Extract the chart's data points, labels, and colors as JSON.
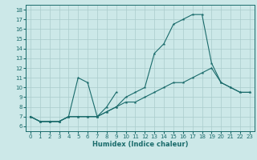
{
  "xlabel": "Humidex (Indice chaleur)",
  "xlim": [
    -0.5,
    23.5
  ],
  "ylim": [
    5.5,
    18.5
  ],
  "xticks": [
    0,
    1,
    2,
    3,
    4,
    5,
    6,
    7,
    8,
    9,
    10,
    11,
    12,
    13,
    14,
    15,
    16,
    17,
    18,
    19,
    20,
    21,
    22,
    23
  ],
  "yticks": [
    6,
    7,
    8,
    9,
    10,
    11,
    12,
    13,
    14,
    15,
    16,
    17,
    18
  ],
  "bg_color": "#cce8e8",
  "grid_color": "#aacccc",
  "line_color": "#1a6b6b",
  "lines": [
    {
      "x": [
        0,
        1,
        2,
        3,
        4,
        5,
        6,
        7,
        8,
        9
      ],
      "y": [
        7.0,
        6.5,
        6.5,
        6.5,
        7.0,
        11.0,
        10.5,
        7.0,
        8.0,
        9.5
      ]
    },
    {
      "x": [
        0,
        1,
        2,
        3,
        4,
        5,
        6,
        7,
        8,
        9,
        10,
        11,
        12,
        13,
        14,
        15,
        16,
        17,
        18,
        19,
        20,
        21,
        22,
        23
      ],
      "y": [
        7.0,
        6.5,
        6.5,
        6.5,
        7.0,
        7.0,
        7.0,
        7.0,
        7.5,
        8.0,
        8.5,
        8.5,
        9.0,
        9.5,
        10.0,
        10.5,
        10.5,
        11.0,
        11.5,
        12.0,
        10.5,
        10.0,
        9.5,
        9.5
      ]
    },
    {
      "x": [
        0,
        1,
        2,
        3,
        4,
        5,
        6,
        7,
        8,
        9,
        10,
        11,
        12,
        13,
        14,
        15,
        16,
        17,
        18,
        19,
        20,
        21,
        22,
        23
      ],
      "y": [
        7.0,
        6.5,
        6.5,
        6.5,
        7.0,
        7.0,
        7.0,
        7.0,
        7.5,
        8.0,
        9.0,
        9.5,
        10.0,
        13.5,
        14.5,
        16.5,
        17.0,
        17.5,
        17.5,
        12.5,
        10.5,
        10.0,
        9.5,
        9.5
      ]
    }
  ]
}
